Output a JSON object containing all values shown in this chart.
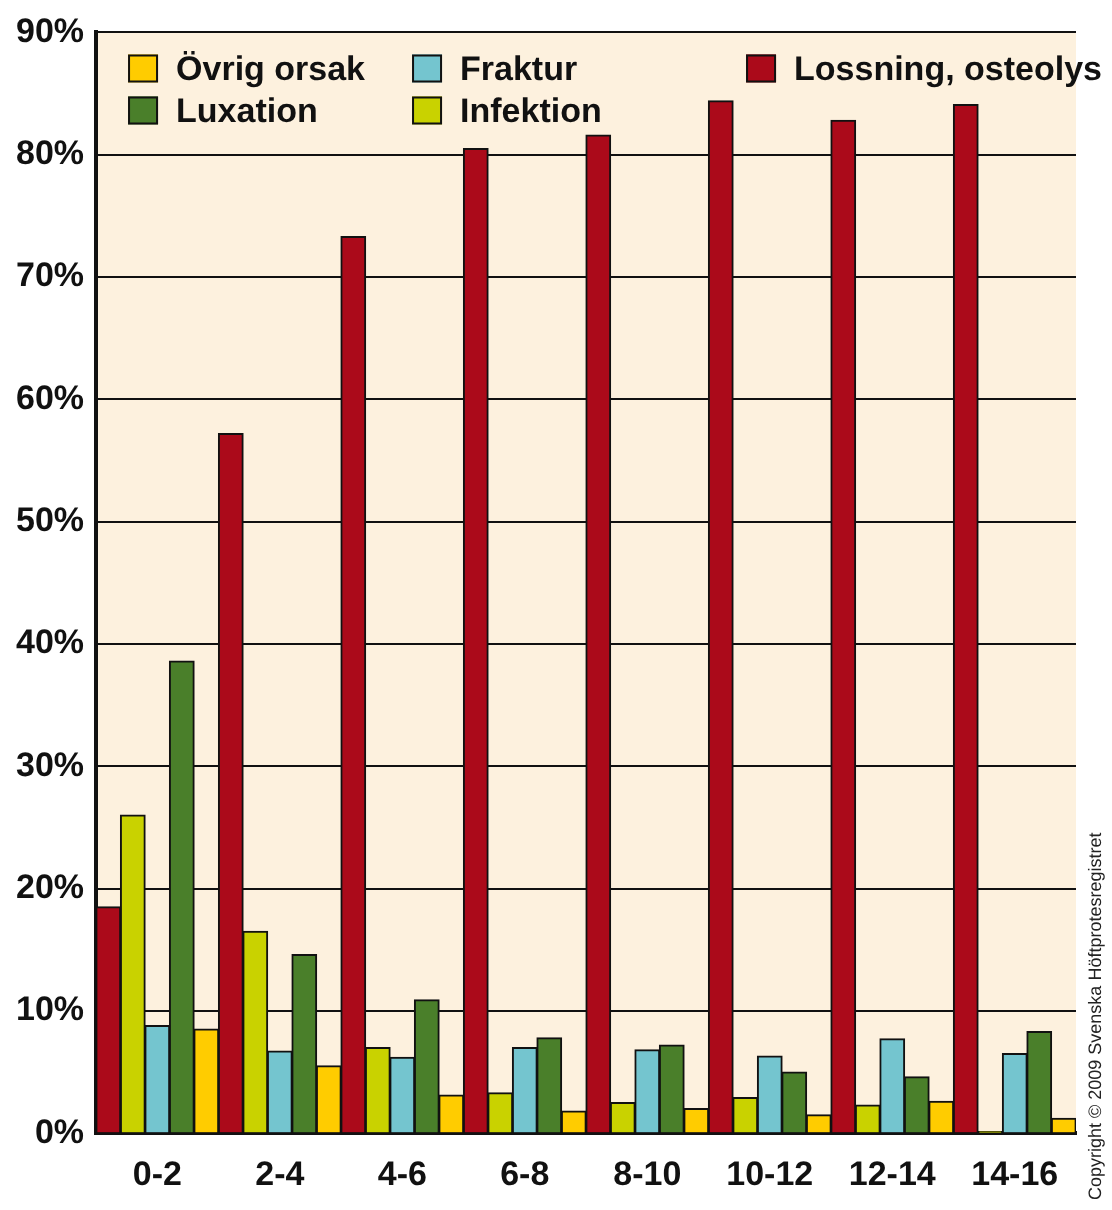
{
  "chart_data": {
    "type": "bar",
    "categories": [
      "0-2",
      "2-4",
      "4-6",
      "6-8",
      "8-10",
      "10-12",
      "12-14",
      "14-16"
    ],
    "series": [
      {
        "name": "Lossning, osteolys",
        "color": "#ab0a1a",
        "values": [
          18.5,
          57.2,
          73.3,
          80.5,
          81.6,
          84.4,
          82.8,
          84.1
        ]
      },
      {
        "name": "Infektion",
        "color": "#c9d200",
        "values": [
          26,
          16.5,
          7,
          3.3,
          2.5,
          2.9,
          2.3,
          0.1
        ]
      },
      {
        "name": "Fraktur",
        "color": "#74c5cf",
        "values": [
          8.8,
          6.7,
          6.2,
          7,
          6.8,
          6.3,
          7.7,
          6.5
        ]
      },
      {
        "name": "Luxation",
        "color": "#4a7f2a",
        "values": [
          38.6,
          14.6,
          10.9,
          7.8,
          7.2,
          5,
          4.6,
          8.3
        ]
      },
      {
        "name": "Övrig orsak",
        "color": "#ffcc00",
        "values": [
          8.5,
          5.5,
          3.1,
          1.8,
          2,
          1.5,
          2.6,
          1.2
        ]
      }
    ],
    "ylim": [
      0,
      90
    ],
    "yticks": [
      {
        "value": 0,
        "label": "0%"
      },
      {
        "value": 10,
        "label": "10%"
      },
      {
        "value": 20,
        "label": "20%"
      },
      {
        "value": 30,
        "label": "30%"
      },
      {
        "value": 40,
        "label": "40%"
      },
      {
        "value": 50,
        "label": "50%"
      },
      {
        "value": 60,
        "label": "60%"
      },
      {
        "value": 70,
        "label": "70%"
      },
      {
        "value": 80,
        "label": "80%"
      },
      {
        "value": 90,
        "label": "90%"
      }
    ],
    "grid": "y",
    "legend": "top",
    "annotations": [
      "Copyright © 2009 Svenska Höftprotesregistret"
    ]
  }
}
